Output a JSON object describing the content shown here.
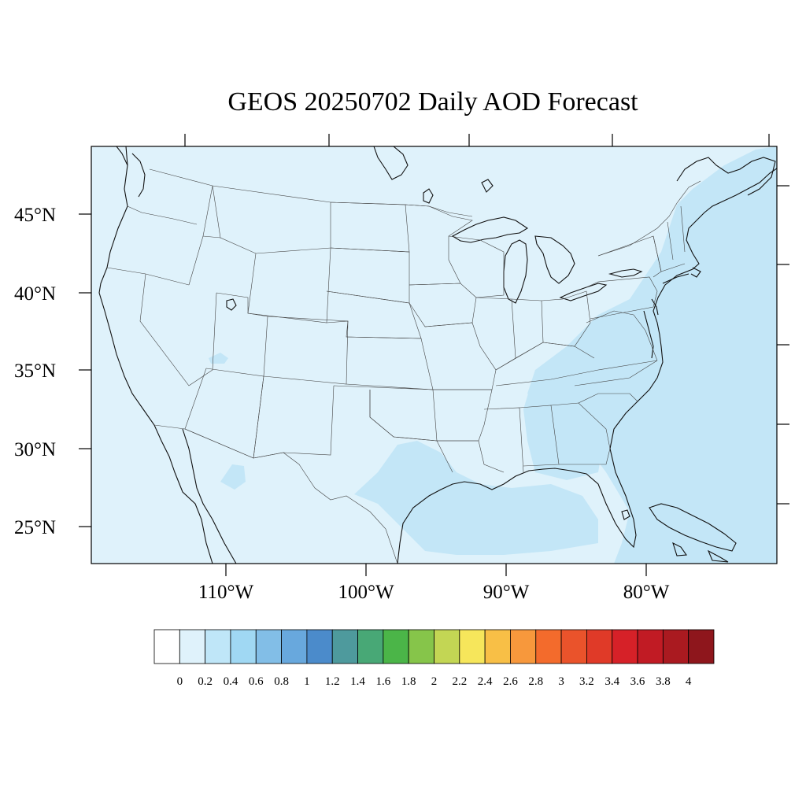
{
  "title": "GEOS 20250702 Daily AOD Forecast",
  "colors": {
    "background_aod": "#dff2fb",
    "aod_0_4_band": "#c3e6f7",
    "frame": "#000000"
  },
  "axes": {
    "lat_labels": [
      "45°N",
      "40°N",
      "35°N",
      "30°N",
      "25°N"
    ],
    "lon_labels": [
      "110°W",
      "100°W",
      "90°W",
      "80°W"
    ]
  },
  "colorbar": {
    "labels": [
      "0",
      "0.2",
      "0.4",
      "0.6",
      "0.8",
      "1",
      "1.2",
      "1.4",
      "1.6",
      "1.8",
      "2",
      "2.2",
      "2.4",
      "2.6",
      "2.8",
      "3",
      "3.2",
      "3.4",
      "3.6",
      "3.8",
      "4"
    ],
    "colors": [
      "#ffffff",
      "#dff2fb",
      "#bfe6f8",
      "#a0d8f3",
      "#82bee7",
      "#68a8dd",
      "#4b8bcb",
      "#4e9a9d",
      "#48a876",
      "#4bb548",
      "#86c54a",
      "#c3d654",
      "#f6e65b",
      "#f8bf46",
      "#f7983c",
      "#f36b2c",
      "#ea532b",
      "#e03a28",
      "#d62128",
      "#c11b24",
      "#aa1a20",
      "#8e161c"
    ]
  }
}
